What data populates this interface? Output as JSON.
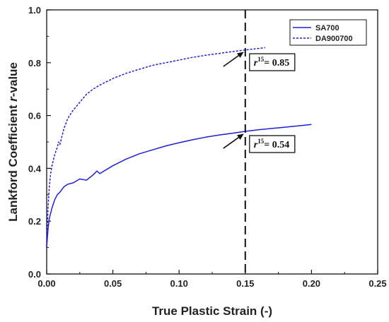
{
  "chart_data": {
    "type": "line",
    "xlabel": "True Plastic Strain (-)",
    "ylabel_prefix": "Lankford Coefficient ",
    "ylabel_italic": "r",
    "ylabel_suffix": "-value",
    "xlim": [
      0,
      0.25
    ],
    "ylim": [
      0,
      1.0
    ],
    "xticks": [
      0.0,
      0.05,
      0.1,
      0.15,
      0.2,
      0.25
    ],
    "xtick_labels": [
      "0.00",
      "0.05",
      "0.10",
      "0.15",
      "0.20",
      "0.25"
    ],
    "yticks": [
      0.0,
      0.2,
      0.4,
      0.6,
      0.8,
      1.0
    ],
    "ytick_labels": [
      "0.0",
      "0.2",
      "0.4",
      "0.6",
      "0.8",
      "1.0"
    ],
    "grid": false,
    "legend_position": "top-right",
    "series": [
      {
        "name": "SA700",
        "style": "solid",
        "color": "#1f1fd6",
        "x": [
          0.0,
          0.001,
          0.002,
          0.004,
          0.006,
          0.008,
          0.01,
          0.013,
          0.016,
          0.02,
          0.025,
          0.03,
          0.035,
          0.038,
          0.04,
          0.045,
          0.05,
          0.06,
          0.07,
          0.08,
          0.09,
          0.1,
          0.11,
          0.12,
          0.13,
          0.14,
          0.15,
          0.16,
          0.17,
          0.18,
          0.19,
          0.2
        ],
        "y": [
          0.1,
          0.17,
          0.21,
          0.25,
          0.28,
          0.3,
          0.31,
          0.33,
          0.34,
          0.345,
          0.36,
          0.355,
          0.375,
          0.39,
          0.38,
          0.395,
          0.41,
          0.435,
          0.455,
          0.47,
          0.485,
          0.497,
          0.508,
          0.518,
          0.526,
          0.533,
          0.54,
          0.546,
          0.551,
          0.556,
          0.561,
          0.566
        ]
      },
      {
        "name": "DA900700",
        "style": "dotted",
        "color": "#1f1fd6",
        "x": [
          0.0,
          0.001,
          0.002,
          0.003,
          0.004,
          0.006,
          0.008,
          0.009,
          0.01,
          0.013,
          0.016,
          0.02,
          0.025,
          0.03,
          0.035,
          0.04,
          0.05,
          0.06,
          0.07,
          0.08,
          0.09,
          0.1,
          0.11,
          0.12,
          0.13,
          0.14,
          0.15,
          0.16,
          0.165
        ],
        "y": [
          0.1,
          0.25,
          0.33,
          0.38,
          0.41,
          0.45,
          0.48,
          0.5,
          0.49,
          0.55,
          0.59,
          0.62,
          0.65,
          0.68,
          0.7,
          0.715,
          0.74,
          0.76,
          0.775,
          0.79,
          0.8,
          0.81,
          0.82,
          0.828,
          0.835,
          0.842,
          0.848,
          0.854,
          0.857
        ]
      }
    ],
    "reference_line": {
      "x": 0.15,
      "style": "dashed",
      "color": "#111111"
    },
    "annotations": [
      {
        "prefix": "r",
        "sup": "15",
        "suffix": "= 0.85",
        "point_x": 0.15,
        "point_y": 0.85
      },
      {
        "prefix": "r",
        "sup": "15",
        "suffix": "= 0.54",
        "point_x": 0.15,
        "point_y": 0.54
      }
    ]
  }
}
